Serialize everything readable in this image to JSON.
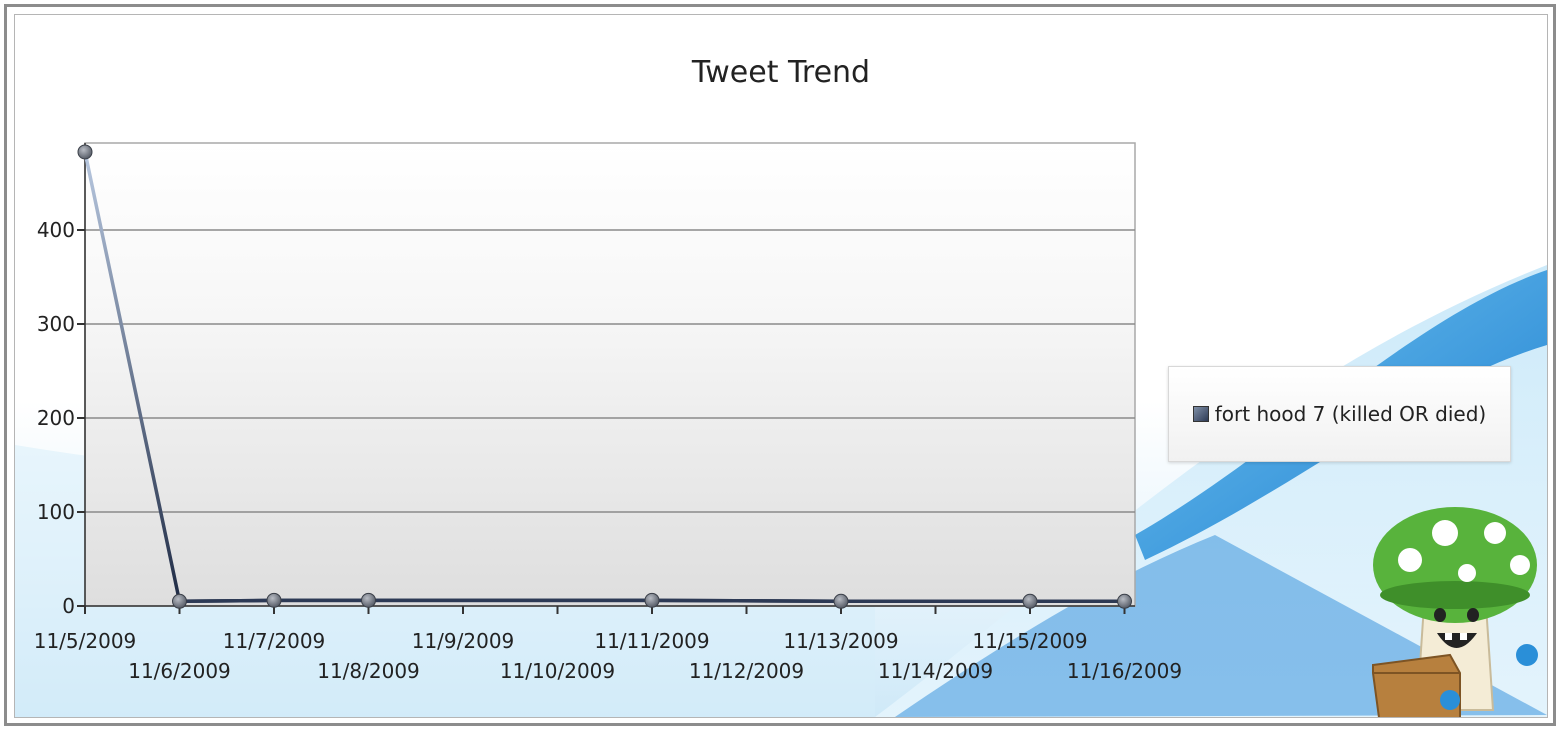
{
  "chart_data": {
    "type": "line",
    "title": "Tweet Trend",
    "xlabel": "",
    "ylabel": "",
    "categories": [
      "11/5/2009",
      "11/6/2009",
      "11/7/2009",
      "11/8/2009",
      "11/9/2009",
      "11/10/2009",
      "11/11/2009",
      "11/12/2009",
      "11/13/2009",
      "11/14/2009",
      "11/15/2009",
      "11/16/2009"
    ],
    "series": [
      {
        "name": "fort hood 7 (killed OR died)",
        "points": [
          {
            "x": "11/5/2009",
            "y": 483
          },
          {
            "x": "11/6/2009",
            "y": 5
          },
          {
            "x": "11/7/2009",
            "y": 6
          },
          {
            "x": "11/8/2009",
            "y": 6
          },
          {
            "x": "11/11/2009",
            "y": 6
          },
          {
            "x": "11/13/2009",
            "y": 5
          },
          {
            "x": "11/15/2009",
            "y": 5
          },
          {
            "x": "11/16/2009",
            "y": 5
          }
        ]
      }
    ],
    "yticks": [
      0,
      100,
      200,
      300,
      400
    ],
    "ylim": [
      0,
      490
    ],
    "grid": true,
    "legend_position": "right",
    "colors": {
      "line": "#2d3a55",
      "marker": "#7a8290",
      "grid": "#8a8a8a"
    }
  }
}
